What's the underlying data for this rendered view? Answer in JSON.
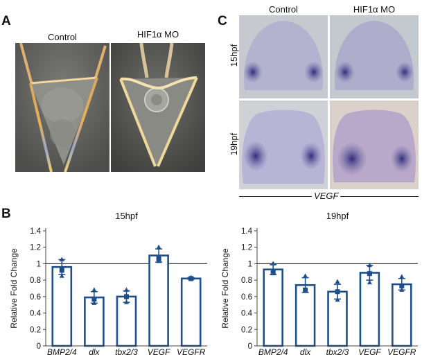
{
  "panel_a": {
    "letter": "A",
    "left_label": "Control",
    "right_label": "HIF1α MO"
  },
  "panel_b": {
    "letter": "B"
  },
  "panel_c": {
    "letter": "C",
    "left_label": "Control",
    "right_label": "HIF1α MO",
    "row1_label": "15hpf",
    "row2_label": "19hpf",
    "gene_label": "VEGF"
  },
  "colors": {
    "bar_outline": "#1f4e8c",
    "marker": "#1f4e8c",
    "stain": "#3a2f7a"
  },
  "chart_data": [
    {
      "type": "bar",
      "title": "15hpf",
      "ylabel": "Relative Fold Change",
      "ylim": [
        0,
        1.4
      ],
      "yticks": [
        "0",
        "0.2",
        "0.4",
        "0.6",
        "0.8",
        "1",
        "1.2",
        "1.4"
      ],
      "reference_line": 1,
      "categories": [
        "BMP2/4",
        "dlx",
        "tbx2/3",
        "VEGF",
        "VEGFR"
      ],
      "values": [
        0.96,
        0.59,
        0.6,
        1.1,
        0.82
      ],
      "errors": [
        0.09,
        0.07,
        0.07,
        0.08,
        0.01
      ],
      "points": [
        [
          1.05,
          0.92,
          0.85
        ],
        [
          0.68,
          0.57,
          0.52
        ],
        [
          0.68,
          0.6,
          0.53
        ],
        [
          1.2,
          1.06,
          1.03
        ],
        [
          0.83,
          0.82,
          0.81
        ]
      ]
    },
    {
      "type": "bar",
      "title": "19hpf",
      "ylabel": "Relative Fold Change",
      "ylim": [
        0,
        1.4
      ],
      "yticks": [
        "0",
        "0.2",
        "0.4",
        "0.6",
        "0.8",
        "1",
        "1.2",
        "1.4"
      ],
      "reference_line": 1,
      "categories": [
        "BMP2/4",
        "dlx",
        "tbx2/3",
        "VEGF",
        "VEGFR"
      ],
      "values": [
        0.93,
        0.74,
        0.66,
        0.89,
        0.75
      ],
      "errors": [
        0.06,
        0.09,
        0.09,
        0.09,
        0.07
      ],
      "points": [
        [
          1.0,
          0.9,
          0.88
        ],
        [
          0.85,
          0.68,
          0.69
        ],
        [
          0.78,
          0.66,
          0.56
        ],
        [
          0.98,
          0.88,
          0.77
        ],
        [
          0.84,
          0.73,
          0.68
        ]
      ]
    }
  ]
}
